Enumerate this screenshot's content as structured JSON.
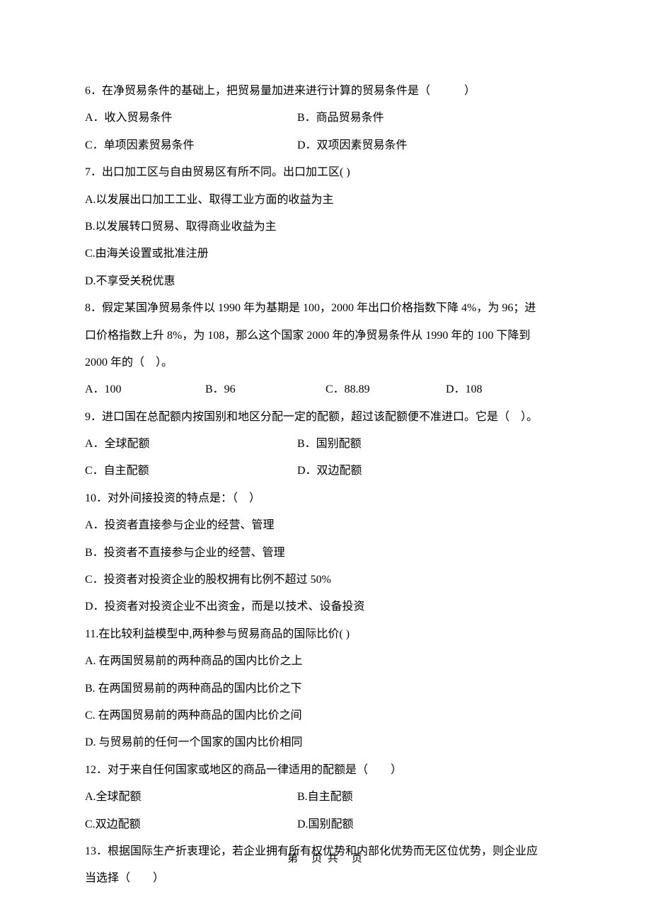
{
  "q6": {
    "stem": "6．在净贸易条件的基础上，把贸易量加进来进行计算的贸易条件是（　　　）",
    "a": "A．收入贸易条件",
    "b": "B．商品贸易条件",
    "c": "C．单项因素贸易条件",
    "d": "D．双项因素贸易条件"
  },
  "q7": {
    "stem": "7．出口加工区与自由贸易区有所不同。出口加工区( )",
    "a": "A.以发展出口加工工业、取得工业方面的收益为主",
    "b": "B.以发展转口贸易、取得商业收益为主",
    "c": "C.由海关设置或批准注册",
    "d": "D.不享受关税优惠"
  },
  "q8": {
    "stem1": "8．假定某国净贸易条件以 1990 年为基期是 100，2000 年出口价格指数下降 4%，为 96；进",
    "stem2": "口价格指数上升 8%，为 108，那么这个国家 2000 年的净贸易条件从 1990 年的 100 下降到",
    "stem3": "2000 年的（　）。",
    "a": "A．100",
    "b": "B．96",
    "c": "C．88.89",
    "d": "D．108"
  },
  "q9": {
    "stem": "9．进口国在总配额内按国别和地区分配一定的配额，超过该配额便不准进口。它是（　）。",
    "a": "A．全球配额",
    "b": "B．国别配额",
    "c": "C．自主配额",
    "d": "D．双边配额"
  },
  "q10": {
    "stem": "10．对外间接投资的特点是：（　）",
    "a": "A．投资者直接参与企业的经营、管理",
    "b": "B．投资者不直接参与企业的经营、管理",
    "c": "C．投资者对投资企业的股权拥有比例不超过 50%",
    "d": "D．投资者对投资企业不出资金，而是以技术、设备投资"
  },
  "q11": {
    "stem": "11.在比较利益模型中,两种参与贸易商品的国际比价( )",
    "a": "A. 在两国贸易前的两种商品的国内比价之上",
    "b": "B. 在两国贸易前的两种商品的国内比价之下",
    "c": "C. 在两国贸易前的两种商品的国内比价之间",
    "d": "D. 与贸易前的任何一个国家的国内比价相同"
  },
  "q12": {
    "stem": "12．对于来自任何国家或地区的商品一律适用的配额是（　　）",
    "a": "A.全球配额",
    "b": "B.自主配额",
    "c": "C.双边配额",
    "d": "D.国别配额"
  },
  "q13": {
    "stem1": "13．根据国际生产折衷理论，若企业拥有所有权优势和内部化优势而无区位优势，则企业应",
    "stem2": "当选择（　　）"
  },
  "footer": "第　页 共　页"
}
